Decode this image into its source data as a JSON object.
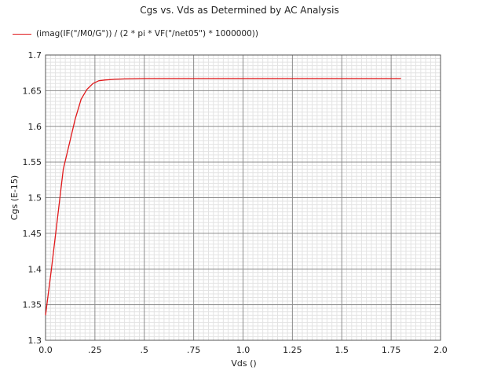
{
  "chart_data": {
    "type": "line",
    "title": "Cgs vs. Vds as Determined by AC Analysis",
    "xlabel": "Vds ()",
    "ylabel": "Cgs (E-15)",
    "xlim": [
      0.0,
      2.0
    ],
    "ylim": [
      1.3,
      1.7
    ],
    "x_ticks": [
      0,
      0.25,
      0.5,
      0.75,
      1.0,
      1.25,
      1.5,
      1.75,
      2.0
    ],
    "x_tick_labels": [
      "0.0",
      ".25",
      ".5",
      ".75",
      "1.0",
      "1.25",
      "1.5",
      "1.75",
      "2.0"
    ],
    "y_ticks": [
      1.3,
      1.35,
      1.4,
      1.45,
      1.5,
      1.55,
      1.6,
      1.65,
      1.7
    ],
    "y_tick_labels": [
      "1.3",
      "1.35",
      "1.4",
      "1.45",
      "1.5",
      "1.55",
      "1.6",
      "1.65",
      "1.7"
    ],
    "grid": true,
    "legend_position": "top-left",
    "series": [
      {
        "name": "(imag(IF(\"/M0/G\")) / (2 * pi * VF(\"/net05\") * 1000000))",
        "color": "#e0191b",
        "x": [
          0.0,
          0.03,
          0.06,
          0.09,
          0.12,
          0.15,
          0.18,
          0.21,
          0.24,
          0.27,
          0.3,
          0.35,
          0.4,
          0.5,
          0.75,
          1.0,
          1.25,
          1.5,
          1.8
        ],
        "y": [
          1.335,
          1.4,
          1.47,
          1.54,
          1.575,
          1.61,
          1.638,
          1.652,
          1.66,
          1.664,
          1.665,
          1.666,
          1.6665,
          1.667,
          1.667,
          1.667,
          1.667,
          1.667,
          1.667
        ]
      }
    ]
  }
}
